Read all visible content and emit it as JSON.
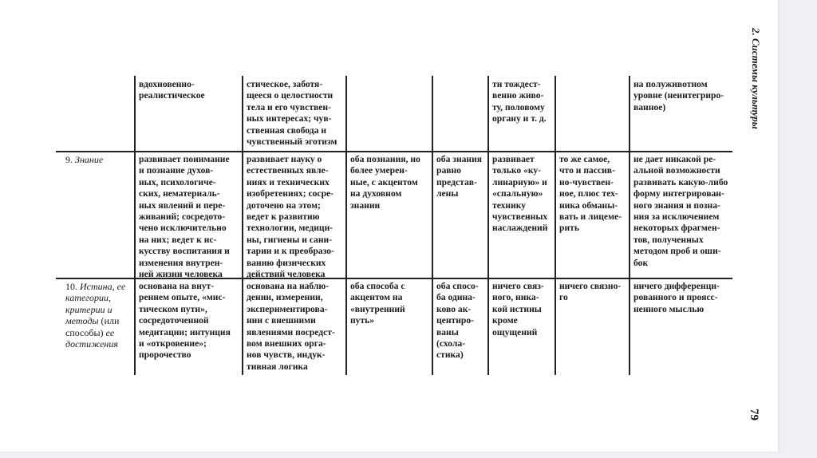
{
  "running_head": "2. Системы культуры",
  "page_number": "79",
  "rows": [
    {
      "label": "",
      "cells": [
        "вдохновенно-\nреалистическое",
        "стическое, заботя-\nщееся о целостности\nтела и его чувствен-\nных интересах; чув-\nственная свобода и\nчувственный эготизм",
        "",
        "",
        "ти тождест-\nвенно живо-\nту, половому\nоргану и т. д.",
        "",
        "на полуживотном\nуровне (неинтегриро-\nванное)"
      ]
    },
    {
      "label_parts": [
        {
          "t": "9. ",
          "i": false
        },
        {
          "t": "Знание",
          "i": true
        }
      ],
      "cells": [
        "развивает понимание\nи познание духов-\nных, психологиче-\nских, нематериаль-\nных явлений и пере-\nживаний; сосредото-\nчено исключительно\nна них; ведет к ис-\nкусству воспитания и\nизменения внутрен-\nней жизни человека",
        "развивает науку о\nестественных явле-\nниях и технических\nизобретениях; сосре-\nдоточено на этом;\nведет к развитию\nтехнологии, медици-\nны, гигиены и сани-\nтарии и к преобразо-\nванию физических\nдействий человека",
        "оба познания, но\nболее умерен-\nные, с акцентом\nна духовном\nзнании",
        "оба знания\nравно\nпредстав-\nлены",
        "развивает\nтолько «ку-\nлинарную» и\n«спальную»\nтехнику\nчувственных\nнаслаждений",
        "то же самое,\nчто и пассив-\nно-чувствен-\nное, плюс тех-\nника обманы-\nвать и лицеме-\nрить",
        "не дает никакой ре-\nальной возможности\nразвивать какую-либо\nформу интегрирован-\nного знания и позна-\nния за исключением\nнекоторых фрагмен-\nтов, полученных\nметодом проб и оши-\nбок"
      ]
    },
    {
      "label_parts": [
        {
          "t": "10. ",
          "i": false
        },
        {
          "t": "Истина, ее\nкатегории,\nкритерии и\nметоды",
          "i": true
        },
        {
          "t": " (или\nспособы) ",
          "i": false
        },
        {
          "t": "ее\nдостижения",
          "i": true
        }
      ],
      "cells": [
        "основана на внут-\nреннем опыте, «мис-\nтическом пути»,\nсосредоточенной\nмедитации; интуиция\nи «откровение»;\nпророчество",
        "основана на наблю-\nдении, измерении,\nэкспериментирова-\nнии с внешними\nявлениями посредст-\nвом внешних орга-\nнов чувств, индук-\nтивная логика",
        "оба способа с\nакцентом на\n«внутренний\nпуть»",
        "оба спосо-\nба одина-\nково ак-\nцентиро-\nваны\n(схола-\nстика)",
        "ничего связ-\nного, ника-\nкой истины\nкроме\nощущений",
        "ничего связно-\nго",
        "ничего дифференци-\nрованного и проясс-\nненного мыслью"
      ]
    }
  ]
}
